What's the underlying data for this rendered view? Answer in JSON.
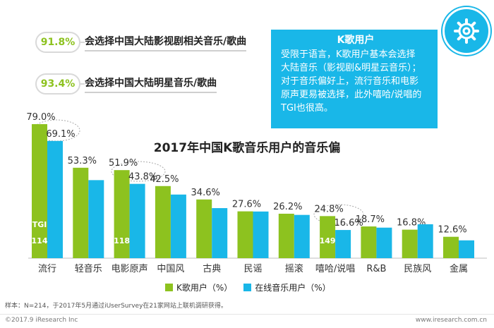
{
  "stats": [
    {
      "value": "91.8%",
      "text": "会选择中国大陆影视剧相关音乐/歌曲"
    },
    {
      "value": "93.4%",
      "text": "会选择中国大陆明星音乐/歌曲"
    }
  ],
  "infobox": {
    "title": "K歌用户",
    "lines": [
      "受限于语言，K歌用户基本会选择",
      "大陆音乐（影视剧&明星云音乐）；",
      "对于音乐偏好上，流行音乐和电影",
      "原声更易被选择，此外嘻哈/说唱的",
      "TGI也很高。"
    ],
    "icon": "gear-icon"
  },
  "chart_data": {
    "type": "bar",
    "title": "2017年中国K歌音乐用户的音乐偏",
    "categories": [
      "流行",
      "轻音乐",
      "电影原声",
      "中国风",
      "古典",
      "民谣",
      "摇滚",
      "嘻哈/说唱",
      "R&B",
      "民族风",
      "金属"
    ],
    "series": [
      {
        "name": "K歌用户（%）",
        "color": "#8dc21f",
        "values": [
          79.0,
          53.3,
          51.9,
          42.5,
          34.6,
          27.6,
          26.2,
          24.8,
          18.7,
          16.8,
          12.6
        ]
      },
      {
        "name": "在线音乐用户（%）",
        "color": "#19b7e8",
        "values": [
          69.1,
          46.0,
          43.8,
          37.5,
          29.5,
          27.5,
          25.5,
          16.6,
          18.0,
          20.0,
          10.5
        ]
      }
    ],
    "labels_shown": [
      "79.0%",
      "69.1%",
      "53.3%",
      "51.9%",
      "43.8%",
      "42.5%",
      "34.6%",
      "27.6%",
      "26.2%",
      "24.8%",
      "16.6%",
      "18.7%",
      "16.8%",
      "12.6%"
    ],
    "tgi": {
      "label": "TGI",
      "values": [
        {
          "category": "流行",
          "value": "114"
        },
        {
          "category": "电影原声",
          "value": "118"
        },
        {
          "category": "嘻哈/说唱",
          "value": "149"
        }
      ]
    },
    "ylim": [
      0,
      85
    ],
    "grid": false,
    "legend": "bottom"
  },
  "note": "样本：N=214，于2017年5月通过iUserSurvey在21家网站上联机调研获得。",
  "footer": {
    "left": "©2017.9 iResearch Inc",
    "right": "www.iresearch.com.cn"
  }
}
